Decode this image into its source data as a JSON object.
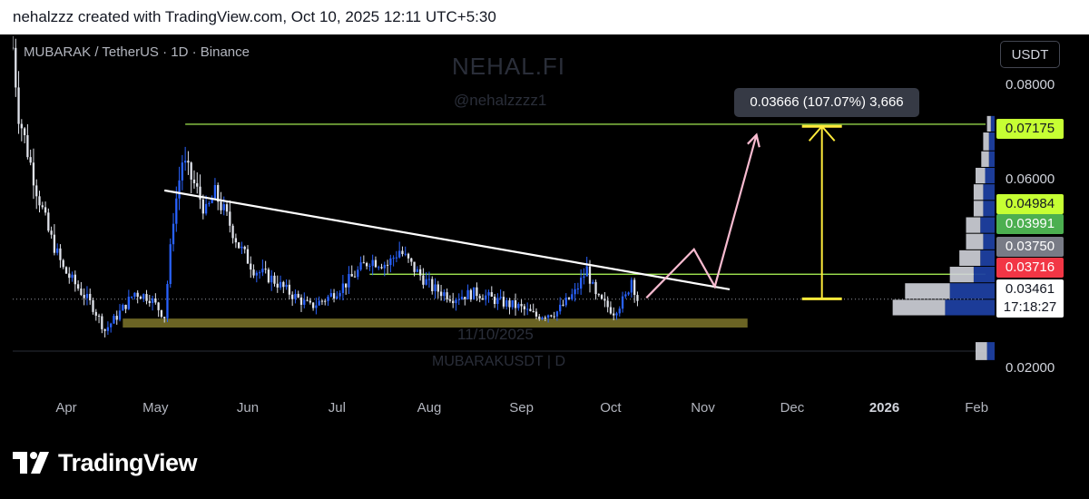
{
  "header": {
    "credit": "nehalzzz created with TradingView.com, Oct 10, 2025 12:11 UTC+5:30"
  },
  "chart": {
    "symbol_line": "MUBARAK / TetherUS · 1D · Binance",
    "watermark": {
      "brand": "NEHAL.FI",
      "handle": "@nehalzzzz1",
      "date": "11/10/2025",
      "pair": "MUBARAKUSDT | D"
    },
    "currency_button": "USDT",
    "measure_tooltip": "0.03666 (107.07%) 3,666",
    "price_tags": [
      {
        "label": "0.07175",
        "value": 0.07175,
        "bg": "#c6ff33",
        "fg": "#131722"
      },
      {
        "label": "0.04984",
        "value": 0.04984,
        "bg": "#c6ff33",
        "fg": "#131722"
      },
      {
        "label": "0.03991",
        "value": 0.03991,
        "bg": "#4caf50",
        "fg": "#ffffff"
      },
      {
        "label": "0.03750",
        "value": 0.0375,
        "bg": "#787b86",
        "fg": "#ffffff"
      },
      {
        "label": "0.03716",
        "value": 0.03716,
        "bg": "#f23645",
        "fg": "#ffffff"
      }
    ],
    "last_price": {
      "price": "0.03461",
      "countdown": "17:18:27"
    },
    "colors": {
      "candle_up": "#2962ff",
      "candle_down": "#e0e3eb",
      "level": "#b2ff59",
      "support_zone": "#6b6424",
      "trendline": "#ffffff",
      "projection": "#f8bbd0",
      "measure": "#ffeb3b"
    },
    "icon": "tradingview-logo-icon",
    "footer_brand": "TradingView"
  },
  "chart_data": {
    "type": "candlestick",
    "title": "MUBARAK / TetherUS · 1D · Binance",
    "x_ticks": [
      {
        "label": "Apr",
        "date": "2025-04-01"
      },
      {
        "label": "May",
        "date": "2025-05-01"
      },
      {
        "label": "Jun",
        "date": "2025-06-01"
      },
      {
        "label": "Jul",
        "date": "2025-07-01"
      },
      {
        "label": "Aug",
        "date": "2025-08-01"
      },
      {
        "label": "Sep",
        "date": "2025-09-01"
      },
      {
        "label": "Oct",
        "date": "2025-10-01"
      },
      {
        "label": "Nov",
        "date": "2025-11-01"
      },
      {
        "label": "Dec",
        "date": "2025-12-01"
      },
      {
        "label": "2026",
        "date": "2026-01-01",
        "bold": true
      },
      {
        "label": "Feb",
        "date": "2026-02-01"
      }
    ],
    "x_range": [
      "2025-03-14",
      "2026-02-04"
    ],
    "y_ticks": [
      {
        "label": "0.08000",
        "value": 0.08
      },
      {
        "label": "0.07000",
        "value": 0.07
      },
      {
        "label": "0.06000",
        "value": 0.06
      },
      {
        "label": "0.02000",
        "value": 0.02
      }
    ],
    "y_range": [
      0.0157,
      0.0908
    ],
    "support_zone": {
      "from": "2025-04-20",
      "to": "2025-11-16",
      "low": 0.0286,
      "high": 0.0305
    },
    "resistance_lines": [
      {
        "from": "2025-05-11",
        "value": 0.07175
      },
      {
        "from": "2025-07-12",
        "value": 0.03991
      }
    ],
    "trendline": [
      {
        "date": "2025-05-04",
        "value": 0.0577
      },
      {
        "date": "2025-11-10",
        "value": 0.0367
      }
    ],
    "projection_path": [
      {
        "date": "2025-10-13",
        "value": 0.0349
      },
      {
        "date": "2025-10-29",
        "value": 0.0452
      },
      {
        "date": "2025-11-05",
        "value": 0.0373
      },
      {
        "date": "2025-11-19",
        "value": 0.0695
      }
    ],
    "measure_arrow": {
      "date": "2025-12-11",
      "from": 0.0347,
      "to": 0.0713
    },
    "last_price_value": 0.03461,
    "volume_profile": [
      {
        "low": 0.0215,
        "high": 0.0255,
        "buy": 8,
        "sell": 12
      },
      {
        "low": 0.031,
        "high": 0.0345,
        "buy": 52,
        "sell": 55
      },
      {
        "low": 0.0345,
        "high": 0.038,
        "buy": 47,
        "sell": 47
      },
      {
        "low": 0.038,
        "high": 0.0415,
        "buy": 22,
        "sell": 25
      },
      {
        "low": 0.0415,
        "high": 0.045,
        "buy": 15,
        "sell": 22
      },
      {
        "low": 0.045,
        "high": 0.0485,
        "buy": 12,
        "sell": 18
      },
      {
        "low": 0.0485,
        "high": 0.052,
        "buy": 15,
        "sell": 15
      },
      {
        "low": 0.052,
        "high": 0.0555,
        "buy": 12,
        "sell": 10
      },
      {
        "low": 0.0555,
        "high": 0.059,
        "buy": 12,
        "sell": 10
      },
      {
        "low": 0.059,
        "high": 0.0625,
        "buy": 10,
        "sell": 10
      },
      {
        "low": 0.0625,
        "high": 0.066,
        "buy": 6,
        "sell": 8
      },
      {
        "low": 0.066,
        "high": 0.07,
        "buy": 6,
        "sell": 6
      },
      {
        "low": 0.07,
        "high": 0.0735,
        "buy": 4,
        "sell": 4
      }
    ],
    "close_path": [
      {
        "date": "2025-03-14",
        "value": 0.088
      },
      {
        "date": "2025-03-16",
        "value": 0.074
      },
      {
        "date": "2025-03-19",
        "value": 0.066
      },
      {
        "date": "2025-03-22",
        "value": 0.058
      },
      {
        "date": "2025-03-26",
        "value": 0.049
      },
      {
        "date": "2025-03-31",
        "value": 0.041
      },
      {
        "date": "2025-04-05",
        "value": 0.037
      },
      {
        "date": "2025-04-10",
        "value": 0.033
      },
      {
        "date": "2025-04-14",
        "value": 0.028
      },
      {
        "date": "2025-04-18",
        "value": 0.031
      },
      {
        "date": "2025-04-24",
        "value": 0.036
      },
      {
        "date": "2025-04-29",
        "value": 0.035
      },
      {
        "date": "2025-05-04",
        "value": 0.031
      },
      {
        "date": "2025-05-07",
        "value": 0.052
      },
      {
        "date": "2025-05-10",
        "value": 0.064
      },
      {
        "date": "2025-05-14",
        "value": 0.059
      },
      {
        "date": "2025-05-18",
        "value": 0.053
      },
      {
        "date": "2025-05-21",
        "value": 0.057
      },
      {
        "date": "2025-05-25",
        "value": 0.052
      },
      {
        "date": "2025-05-29",
        "value": 0.046
      },
      {
        "date": "2025-06-03",
        "value": 0.041
      },
      {
        "date": "2025-06-09",
        "value": 0.039
      },
      {
        "date": "2025-06-15",
        "value": 0.036
      },
      {
        "date": "2025-06-22",
        "value": 0.033
      },
      {
        "date": "2025-06-28",
        "value": 0.035
      },
      {
        "date": "2025-07-04",
        "value": 0.038
      },
      {
        "date": "2025-07-12",
        "value": 0.043
      },
      {
        "date": "2025-07-18",
        "value": 0.042
      },
      {
        "date": "2025-07-22",
        "value": 0.045
      },
      {
        "date": "2025-07-27",
        "value": 0.041
      },
      {
        "date": "2025-08-02",
        "value": 0.037
      },
      {
        "date": "2025-08-09",
        "value": 0.035
      },
      {
        "date": "2025-08-17",
        "value": 0.036
      },
      {
        "date": "2025-08-25",
        "value": 0.034
      },
      {
        "date": "2025-08-31",
        "value": 0.033
      },
      {
        "date": "2025-09-06",
        "value": 0.031
      },
      {
        "date": "2025-09-13",
        "value": 0.032
      },
      {
        "date": "2025-09-19",
        "value": 0.036
      },
      {
        "date": "2025-09-23",
        "value": 0.041
      },
      {
        "date": "2025-09-26",
        "value": 0.035
      },
      {
        "date": "2025-10-02",
        "value": 0.032
      },
      {
        "date": "2025-10-06",
        "value": 0.035
      },
      {
        "date": "2025-10-08",
        "value": 0.039
      },
      {
        "date": "2025-10-10",
        "value": 0.0346
      }
    ]
  }
}
